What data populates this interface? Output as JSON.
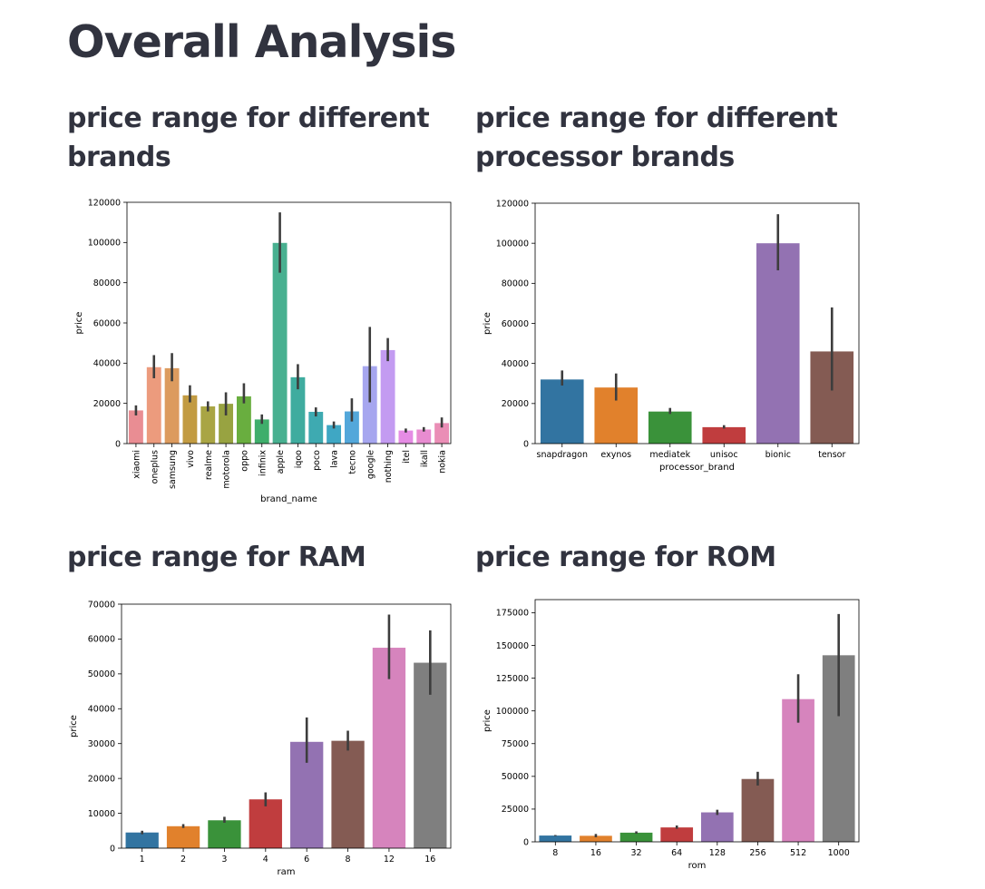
{
  "page": {
    "title": "Overall Analysis",
    "sections": [
      "price range for different brands",
      "price range for different processor brands",
      "price range for RAM",
      "price range for ROM"
    ]
  },
  "chart_data": [
    {
      "type": "bar",
      "xlabel": "brand_name",
      "ylabel": "price",
      "ylim": [
        0,
        120000
      ],
      "yticks": [
        0,
        20000,
        40000,
        60000,
        80000,
        100000,
        120000
      ],
      "rotate_x": true,
      "categories": [
        "xiaomi",
        "oneplus",
        "samsung",
        "vivo",
        "realme",
        "motorola",
        "oppo",
        "infinix",
        "apple",
        "iqoo",
        "poco",
        "lava",
        "tecno",
        "google",
        "nothing",
        "itel",
        "ikall",
        "nokia"
      ],
      "values": [
        16500,
        38000,
        37500,
        24000,
        18500,
        19800,
        23500,
        12000,
        99800,
        33000,
        15800,
        9200,
        16000,
        38500,
        46500,
        6500,
        7000,
        10200
      ],
      "err_low": [
        14000,
        32500,
        31000,
        20500,
        16000,
        14000,
        20000,
        9800,
        85000,
        27000,
        13500,
        7500,
        11000,
        20500,
        41000,
        5500,
        6000,
        8000
      ],
      "err_high": [
        19000,
        44000,
        45000,
        29000,
        21000,
        25500,
        30000,
        14500,
        115000,
        39500,
        18000,
        11000,
        22500,
        58000,
        52500,
        7500,
        8200,
        13000
      ],
      "colors": [
        "#e98d93",
        "#ec9b7d",
        "#dc9b5e",
        "#c29b42",
        "#a9a544",
        "#98a341",
        "#69ae3f",
        "#3fae6b",
        "#48b090",
        "#3fac9f",
        "#3eaab1",
        "#3fa7c4",
        "#53a7da",
        "#a6a6ef",
        "#c39bf1",
        "#e58ce4",
        "#e88cd1",
        "#ea8eb6"
      ],
      "grid": false
    },
    {
      "type": "bar",
      "xlabel": "processor_brand",
      "ylabel": "price",
      "ylim": [
        0,
        120000
      ],
      "yticks": [
        0,
        20000,
        40000,
        60000,
        80000,
        100000,
        120000
      ],
      "rotate_x": false,
      "categories": [
        "snapdragon",
        "exynos",
        "mediatek",
        "unisoc",
        "bionic",
        "tensor"
      ],
      "values": [
        32000,
        28000,
        16000,
        8200,
        100000,
        46000
      ],
      "err_low": [
        29000,
        21500,
        14800,
        7500,
        86500,
        26500
      ],
      "err_high": [
        36500,
        35000,
        17800,
        9200,
        114500,
        68000
      ],
      "colors": [
        "#3274a1",
        "#e1812c",
        "#3a923a",
        "#c03d3e",
        "#9372b2",
        "#845b53"
      ],
      "grid": false
    },
    {
      "type": "bar",
      "xlabel": "ram",
      "ylabel": "price",
      "ylim": [
        0,
        70000
      ],
      "yticks": [
        0,
        10000,
        20000,
        30000,
        40000,
        50000,
        60000,
        70000
      ],
      "rotate_x": false,
      "categories": [
        "1",
        "2",
        "3",
        "4",
        "6",
        "8",
        "12",
        "16"
      ],
      "values": [
        4500,
        6300,
        8000,
        14000,
        30500,
        30800,
        57500,
        53200
      ],
      "err_low": [
        4000,
        5800,
        7300,
        12000,
        24500,
        28000,
        48500,
        44000
      ],
      "err_high": [
        5000,
        6900,
        9000,
        16000,
        37500,
        33700,
        67000,
        62500
      ],
      "colors": [
        "#3274a1",
        "#e1812c",
        "#3a923a",
        "#c03d3e",
        "#9372b2",
        "#845b53",
        "#d684bd",
        "#7f7f7f"
      ],
      "grid": false
    },
    {
      "type": "bar",
      "xlabel": "rom",
      "ylabel": "price",
      "ylim": [
        0,
        185000
      ],
      "yticks": [
        0,
        25000,
        50000,
        75000,
        100000,
        125000,
        150000,
        175000
      ],
      "rotate_x": false,
      "categories": [
        "8",
        "16",
        "32",
        "64",
        "128",
        "256",
        "512",
        "1000"
      ],
      "values": [
        4800,
        4600,
        7000,
        11000,
        22500,
        48000,
        109000,
        142500
      ],
      "err_low": [
        4400,
        3500,
        6200,
        10000,
        20500,
        43000,
        91000,
        96000
      ],
      "err_high": [
        5200,
        6000,
        8000,
        12500,
        24500,
        53500,
        128000,
        174000
      ],
      "colors": [
        "#3274a1",
        "#e1812c",
        "#3a923a",
        "#c03d3e",
        "#9372b2",
        "#845b53",
        "#d684bd",
        "#7f7f7f"
      ],
      "grid": false
    }
  ]
}
